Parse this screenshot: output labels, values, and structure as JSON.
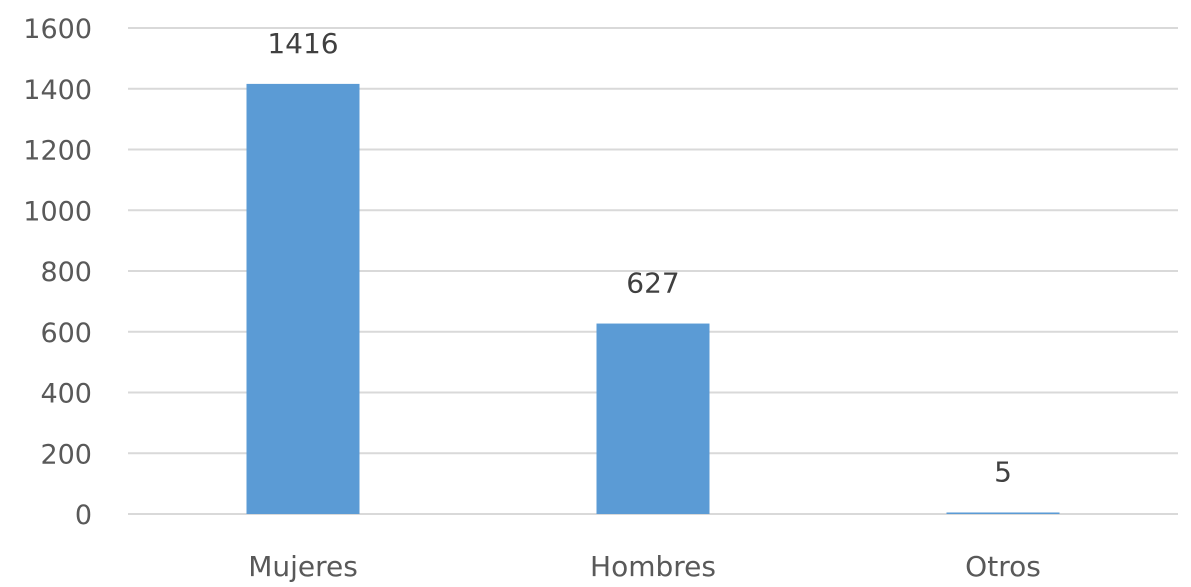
{
  "chart_data": {
    "type": "bar",
    "categories": [
      "Mujeres",
      "Hombres",
      "Otros"
    ],
    "values": [
      1416,
      627,
      5
    ],
    "data_labels": [
      "1416",
      "627",
      "5"
    ],
    "title": "",
    "xlabel": "",
    "ylabel": "",
    "ylim": [
      0,
      1600
    ],
    "yticks": [
      0,
      200,
      400,
      600,
      800,
      1000,
      1200,
      1400,
      1600
    ],
    "grid": true,
    "legend": "none",
    "bar_color": "#5b9bd5",
    "gridline_color": "#d9d9d9",
    "text_color": "#595959"
  }
}
